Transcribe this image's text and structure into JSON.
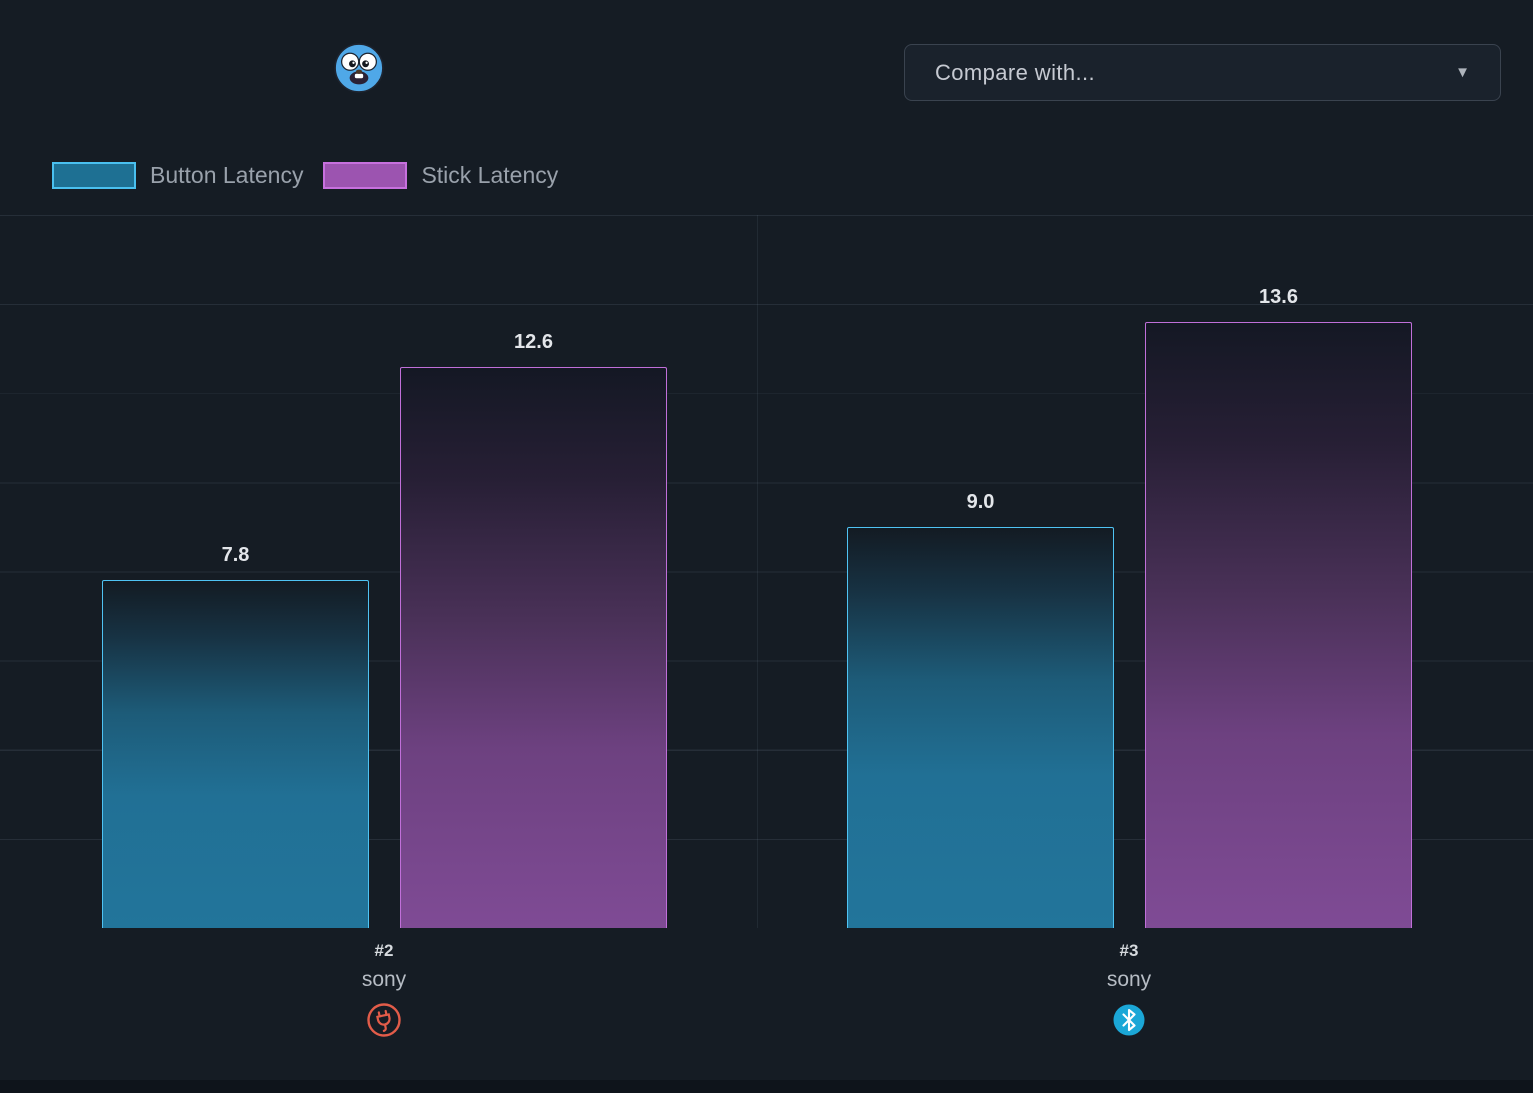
{
  "header": {
    "compare_placeholder": "Compare with..."
  },
  "icons": {
    "dropdown_arrow": "▼",
    "mascot": "gopher-mascot",
    "group1_connection": "usb-plug-icon",
    "group2_connection": "bluetooth-icon"
  },
  "legend": [
    {
      "label": "Button Latency",
      "fill": "#1e7093",
      "border": "#4ac0ef"
    },
    {
      "label": "Stick Latency",
      "fill": "#9c54b0",
      "border": "#c770de"
    }
  ],
  "chart_data": {
    "type": "bar",
    "categories": [
      "#2 sony",
      "#3 sony"
    ],
    "series": [
      {
        "name": "Button Latency",
        "values": [
          7.8,
          9.0
        ],
        "labels": [
          "7.8",
          "9.0"
        ],
        "color": "#22759b",
        "border": "#4ac0ef"
      },
      {
        "name": "Stick Latency",
        "values": [
          12.6,
          13.6
        ],
        "labels": [
          "12.6",
          "13.6"
        ],
        "color": "#7f4b95",
        "border": "#c770de"
      }
    ],
    "ylim": [
      0,
      16
    ],
    "grid": true,
    "legend_position": "top-left",
    "title": ""
  },
  "groups": [
    {
      "rank": "#2",
      "brand": "sony",
      "connection": "wired"
    },
    {
      "rank": "#3",
      "brand": "sony",
      "connection": "bluetooth"
    }
  ]
}
